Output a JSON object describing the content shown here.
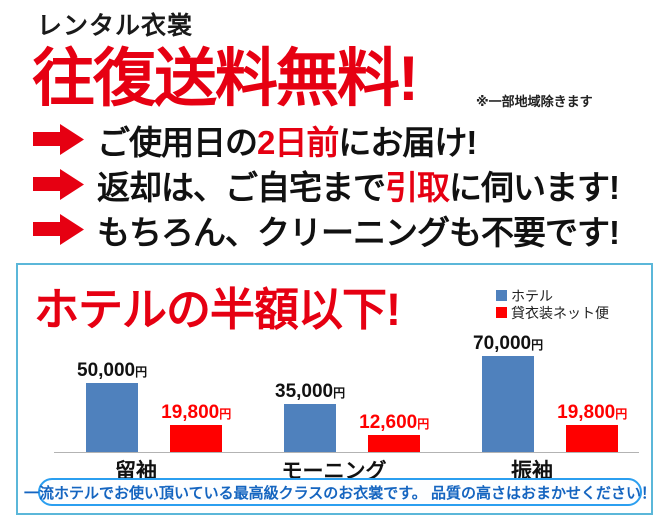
{
  "header": {
    "kicker": "レンタル衣裳",
    "headline": "往復送料無料!",
    "note": "※一部地域除きます"
  },
  "bullets": [
    {
      "pre": "ご使用日の",
      "highlight": "2日前",
      "post": "にお届け!"
    },
    {
      "pre": "返却は、ご自宅まで",
      "highlight": "引取",
      "post": "に伺います!"
    },
    {
      "pre": "もちろん、クリーニングも不要です!",
      "highlight": "",
      "post": ""
    }
  ],
  "price_box": {
    "title": "ホテルの半額以下!",
    "legend": [
      {
        "label": "ホテル",
        "color": "#4f81bd"
      },
      {
        "label": "貸衣装ネット便",
        "color": "#ff0000"
      }
    ],
    "footer": "一流ホテルでお使い頂いている最高級クラスのお衣裳です。 品質の高さはおまかせください！"
  },
  "chart_data": {
    "type": "bar",
    "categories": [
      "留袖",
      "モーニング",
      "振袖"
    ],
    "series": [
      {
        "name": "ホテル",
        "color": "#4f81bd",
        "values": [
          50000,
          35000,
          70000
        ],
        "labels": [
          "50,000",
          "35,000",
          "70,000"
        ]
      },
      {
        "name": "貸衣装ネット便",
        "color": "#ff0000",
        "values": [
          19800,
          12600,
          19800
        ],
        "labels": [
          "19,800",
          "12,600",
          "19,800"
        ]
      }
    ],
    "unit": "円",
    "ylim": [
      0,
      70000
    ],
    "grid": false,
    "legend_position": "top-right"
  },
  "colors": {
    "accent_red": "#e60012",
    "bar_blue": "#4f81bd",
    "bar_red": "#ff0000",
    "box_border": "#5bb7d9",
    "pill_border": "#2b9ff0",
    "pill_text": "#1565c0",
    "axis": "#b3b3b3"
  }
}
